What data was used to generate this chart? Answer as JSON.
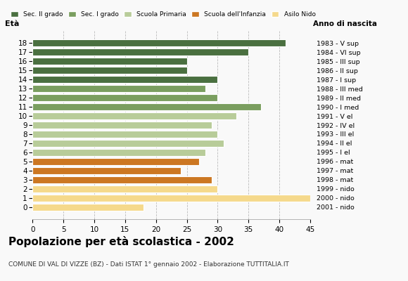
{
  "ages": [
    18,
    17,
    16,
    15,
    14,
    13,
    12,
    11,
    10,
    9,
    8,
    7,
    6,
    5,
    4,
    3,
    2,
    1,
    0
  ],
  "values": [
    41,
    35,
    25,
    25,
    30,
    28,
    30,
    37,
    33,
    29,
    30,
    31,
    28,
    27,
    24,
    29,
    30,
    45,
    18
  ],
  "anno_nascita": [
    "1983 - V sup",
    "1984 - VI sup",
    "1985 - III sup",
    "1986 - II sup",
    "1987 - I sup",
    "1988 - III med",
    "1989 - II med",
    "1990 - I med",
    "1991 - V el",
    "1992 - IV el",
    "1993 - III el",
    "1994 - II el",
    "1995 - I el",
    "1996 - mat",
    "1997 - mat",
    "1998 - mat",
    "1999 - nido",
    "2000 - nido",
    "2001 - nido"
  ],
  "colors_by_age": {
    "18": "#4a7040",
    "17": "#4a7040",
    "16": "#4a7040",
    "15": "#4a7040",
    "14": "#4a7040",
    "13": "#7a9e5f",
    "12": "#7a9e5f",
    "11": "#7a9e5f",
    "10": "#b8cc99",
    "9": "#b8cc99",
    "8": "#b8cc99",
    "7": "#b8cc99",
    "6": "#b8cc99",
    "5": "#cc7722",
    "4": "#cc7722",
    "3": "#cc7722",
    "2": "#f5d98c",
    "1": "#f5d98c",
    "0": "#f5d98c"
  },
  "legend_labels": [
    "Sec. II grado",
    "Sec. I grado",
    "Scuola Primaria",
    "Scuola dell'Infanzia",
    "Asilo Nido"
  ],
  "legend_colors": [
    "#4a7040",
    "#7a9e5f",
    "#b8cc99",
    "#cc7722",
    "#f5d98c"
  ],
  "title": "Popolazione per età scolastica - 2002",
  "subtitle": "COMUNE DI VAL DI VIZZE (BZ) - Dati ISTAT 1° gennaio 2002 - Elaborazione TUTTITALIA.IT",
  "xlabel_eta": "Età",
  "xlabel_anno": "Anno di nascita",
  "xlim": [
    0,
    45
  ],
  "xticks": [
    0,
    5,
    10,
    15,
    20,
    25,
    30,
    35,
    40,
    45
  ],
  "bg_color": "#f9f9f9"
}
